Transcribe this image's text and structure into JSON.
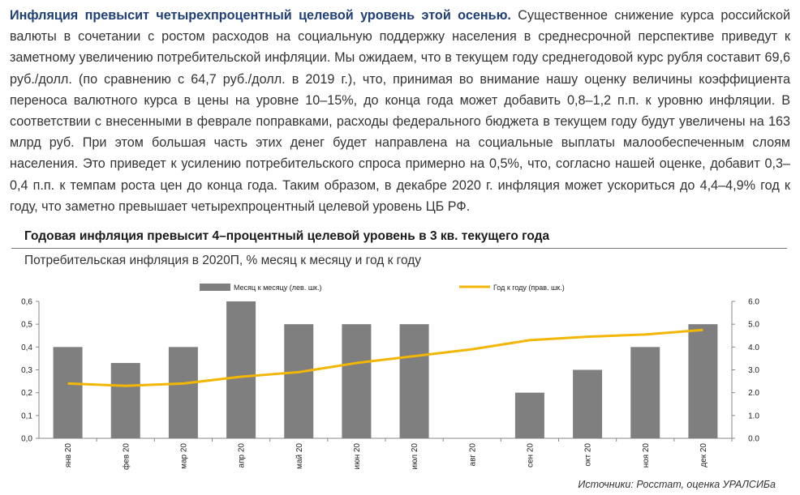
{
  "paragraph": {
    "lead": "Инфляция превысит четырехпроцентный целевой уровень этой осенью.",
    "body": " Существенное снижение курса российской валюты в сочетании с ростом расходов на социальную поддержку населения в среднесрочной перспективе приведут к заметному увеличению потребительской инфляции. Мы ожидаем, что в текущем году среднегодовой курс рубля составит 69,6 руб./долл. (по сравнению с 64,7 руб./долл. в 2019 г.), что, принимая во внимание нашу оценку величины коэффициента переноса валютного курса в цены на уровне 10–15%, до конца года может добавить 0,8–1,2 п.п. к уровню инфляции. В соответствии с внесенными в феврале поправками, расходы федерального бюджета в текущем году будут увеличены на 163 млрд руб. При этом большая часть этих денег будет направлена на социальные выплаты малообеспеченным слоям населения. Это приведет к усилению потребительского спроса примерно на 0,5%, что, согласно нашей оценке, добавит 0,3–0,4 п.п. к темпам роста цен до конца года. Таким образом, в декабре 2020 г. инфляция может ускориться до 4,4–4,9% год к году, что заметно превышает четырехпроцентный целевой уровень ЦБ РФ."
  },
  "chart_title": "Годовая инфляция превысит 4–процентный целевой уровень в 3 кв. текущего года",
  "chart_subtitle": "Потребительская инфляция в 2020П, % месяц к месяцу и год к году",
  "source": "Источники: Росстат, оценка УРАЛСИБа",
  "chart_data": {
    "type": "bar",
    "categories": [
      "янв 20",
      "фев 20",
      "мар 20",
      "апр 20",
      "май 20",
      "июн 20",
      "июл 20",
      "авг 20",
      "сен 20",
      "окт 20",
      "ноя 20",
      "дек 20"
    ],
    "series": [
      {
        "name": "Месяц к месяцу (лев. шк.)",
        "type": "bar",
        "axis": "left",
        "color": "#7f7f7f",
        "values": [
          0.4,
          0.33,
          0.4,
          0.6,
          0.5,
          0.5,
          0.5,
          0.0,
          0.2,
          0.3,
          0.4,
          0.5
        ]
      },
      {
        "name": "Год к году (прав. шк.)",
        "type": "line",
        "axis": "right",
        "color": "#f2b705",
        "values": [
          2.4,
          2.3,
          2.4,
          2.7,
          2.9,
          3.3,
          3.6,
          3.9,
          4.3,
          4.45,
          4.55,
          4.75
        ]
      }
    ],
    "y_left": {
      "min": 0,
      "max": 0.6,
      "ticks": [
        "0,0",
        "0,1",
        "0,2",
        "0,3",
        "0,4",
        "0,5",
        "0,6"
      ]
    },
    "y_right": {
      "min": 0,
      "max": 6,
      "ticks": [
        "0.0",
        "1.0",
        "2.0",
        "3.0",
        "4.0",
        "5.0",
        "6.0"
      ]
    },
    "legend_position": "top",
    "grid": false
  }
}
